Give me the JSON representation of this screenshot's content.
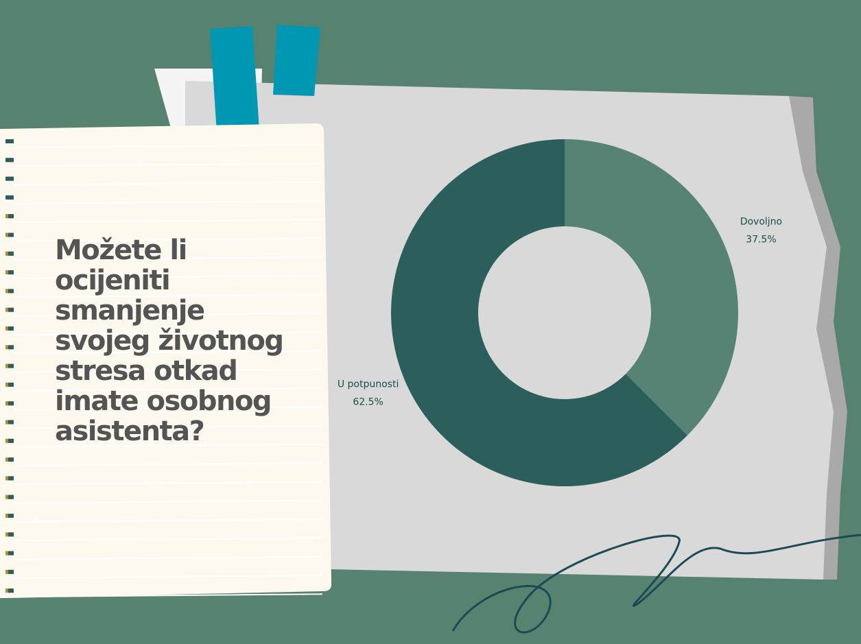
{
  "chart_data": {
    "type": "donut",
    "title": "Možete li ocijeniti smanjenje svojeg životnog stresa otkad imate osobnog asistenta?",
    "categories": [
      "Dovoljno",
      "U potpunosti"
    ],
    "values": [
      37.5,
      62.5
    ],
    "value_labels": [
      "37.5%",
      "62.5%"
    ],
    "colors": [
      "#568373",
      "#2c5e5c"
    ]
  }
}
